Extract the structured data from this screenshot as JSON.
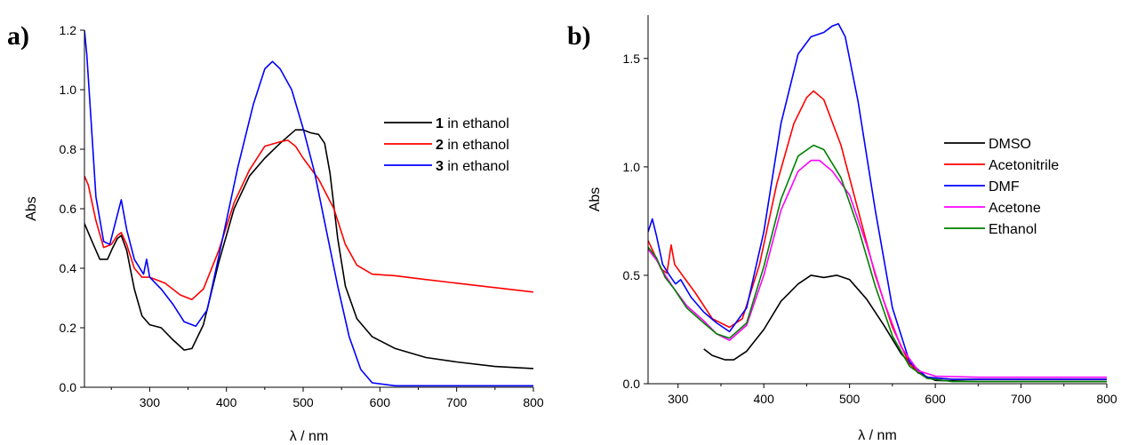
{
  "chart_data": [
    {
      "panel_label": "a)",
      "type": "line",
      "xlabel": "λ / nm",
      "ylabel": "Abs",
      "xlim": [
        215,
        800
      ],
      "ylim": [
        0,
        1.2
      ],
      "xticks": [
        300,
        400,
        500,
        600,
        700,
        800
      ],
      "yticks": [
        "0.0",
        "0.2",
        "0.4",
        "0.6",
        "0.8",
        "1.0",
        "1.2"
      ],
      "legend_position": "top-right",
      "series": [
        {
          "legend_bold": "1",
          "legend_rest": " in ethanol",
          "color": "#000000",
          "points": [
            [
              215,
              0.55
            ],
            [
              225,
              0.49
            ],
            [
              235,
              0.43
            ],
            [
              245,
              0.43
            ],
            [
              252,
              0.47
            ],
            [
              258,
              0.5
            ],
            [
              263,
              0.51
            ],
            [
              270,
              0.46
            ],
            [
              280,
              0.33
            ],
            [
              290,
              0.24
            ],
            [
              300,
              0.21
            ],
            [
              315,
              0.2
            ],
            [
              330,
              0.16
            ],
            [
              345,
              0.125
            ],
            [
              355,
              0.13
            ],
            [
              370,
              0.21
            ],
            [
              390,
              0.42
            ],
            [
              410,
              0.6
            ],
            [
              430,
              0.71
            ],
            [
              450,
              0.77
            ],
            [
              470,
              0.82
            ],
            [
              490,
              0.865
            ],
            [
              500,
              0.865
            ],
            [
              510,
              0.855
            ],
            [
              520,
              0.85
            ],
            [
              528,
              0.82
            ],
            [
              535,
              0.72
            ],
            [
              545,
              0.5
            ],
            [
              555,
              0.34
            ],
            [
              570,
              0.23
            ],
            [
              590,
              0.17
            ],
            [
              620,
              0.13
            ],
            [
              660,
              0.1
            ],
            [
              700,
              0.085
            ],
            [
              750,
              0.07
            ],
            [
              800,
              0.063
            ]
          ]
        },
        {
          "legend_bold": "2",
          "legend_rest": " in ethanol",
          "color": "#ff0000",
          "points": [
            [
              215,
              0.71
            ],
            [
              220,
              0.68
            ],
            [
              230,
              0.56
            ],
            [
              240,
              0.47
            ],
            [
              250,
              0.48
            ],
            [
              258,
              0.51
            ],
            [
              263,
              0.52
            ],
            [
              270,
              0.48
            ],
            [
              280,
              0.4
            ],
            [
              290,
              0.37
            ],
            [
              300,
              0.37
            ],
            [
              320,
              0.35
            ],
            [
              340,
              0.31
            ],
            [
              355,
              0.295
            ],
            [
              370,
              0.33
            ],
            [
              390,
              0.46
            ],
            [
              410,
              0.62
            ],
            [
              430,
              0.73
            ],
            [
              450,
              0.81
            ],
            [
              470,
              0.825
            ],
            [
              480,
              0.83
            ],
            [
              490,
              0.81
            ],
            [
              500,
              0.77
            ],
            [
              520,
              0.7
            ],
            [
              540,
              0.6
            ],
            [
              555,
              0.48
            ],
            [
              570,
              0.41
            ],
            [
              590,
              0.38
            ],
            [
              620,
              0.375
            ],
            [
              650,
              0.365
            ],
            [
              700,
              0.35
            ],
            [
              750,
              0.335
            ],
            [
              800,
              0.32
            ]
          ]
        },
        {
          "legend_bold": "3",
          "legend_rest": " in ethanol",
          "color": "#0000ff",
          "points": [
            [
              215,
              1.2
            ],
            [
              218,
              1.12
            ],
            [
              224,
              0.88
            ],
            [
              230,
              0.64
            ],
            [
              240,
              0.49
            ],
            [
              248,
              0.48
            ],
            [
              255,
              0.55
            ],
            [
              263,
              0.63
            ],
            [
              270,
              0.53
            ],
            [
              280,
              0.43
            ],
            [
              292,
              0.38
            ],
            [
              296,
              0.43
            ],
            [
              300,
              0.37
            ],
            [
              315,
              0.33
            ],
            [
              330,
              0.28
            ],
            [
              345,
              0.22
            ],
            [
              360,
              0.205
            ],
            [
              375,
              0.26
            ],
            [
              395,
              0.5
            ],
            [
              415,
              0.74
            ],
            [
              435,
              0.95
            ],
            [
              450,
              1.07
            ],
            [
              460,
              1.095
            ],
            [
              470,
              1.07
            ],
            [
              485,
              1.0
            ],
            [
              500,
              0.87
            ],
            [
              515,
              0.72
            ],
            [
              530,
              0.53
            ],
            [
              545,
              0.34
            ],
            [
              560,
              0.17
            ],
            [
              575,
              0.06
            ],
            [
              590,
              0.015
            ],
            [
              620,
              0.005
            ],
            [
              700,
              0.005
            ],
            [
              800,
              0.005
            ]
          ]
        }
      ]
    },
    {
      "panel_label": "b)",
      "type": "line",
      "xlabel": "λ / nm",
      "ylabel": "Abs",
      "xlim": [
        265,
        800
      ],
      "ylim": [
        0,
        1.7
      ],
      "xticks": [
        300,
        400,
        500,
        600,
        700,
        800
      ],
      "yticks": [
        "0.0",
        "0.5",
        "1.0",
        "1.5"
      ],
      "legend_position": "right",
      "series": [
        {
          "name": "DMSO",
          "color": "#000000",
          "points": [
            [
              330,
              0.16
            ],
            [
              340,
              0.13
            ],
            [
              355,
              0.11
            ],
            [
              365,
              0.11
            ],
            [
              380,
              0.15
            ],
            [
              400,
              0.25
            ],
            [
              420,
              0.38
            ],
            [
              440,
              0.46
            ],
            [
              455,
              0.5
            ],
            [
              470,
              0.49
            ],
            [
              485,
              0.5
            ],
            [
              500,
              0.48
            ],
            [
              520,
              0.39
            ],
            [
              540,
              0.27
            ],
            [
              560,
              0.14
            ],
            [
              580,
              0.05
            ],
            [
              600,
              0.015
            ],
            [
              650,
              0.01
            ],
            [
              800,
              0.01
            ]
          ]
        },
        {
          "name": "Acetonitrile",
          "color": "#ff0000",
          "points": [
            [
              265,
              0.66
            ],
            [
              272,
              0.6
            ],
            [
              280,
              0.53
            ],
            [
              287,
              0.51
            ],
            [
              292,
              0.64
            ],
            [
              296,
              0.55
            ],
            [
              305,
              0.5
            ],
            [
              320,
              0.42
            ],
            [
              340,
              0.3
            ],
            [
              360,
              0.26
            ],
            [
              375,
              0.3
            ],
            [
              395,
              0.55
            ],
            [
              415,
              0.92
            ],
            [
              435,
              1.2
            ],
            [
              450,
              1.32
            ],
            [
              458,
              1.35
            ],
            [
              470,
              1.31
            ],
            [
              490,
              1.1
            ],
            [
              510,
              0.8
            ],
            [
              530,
              0.5
            ],
            [
              550,
              0.26
            ],
            [
              570,
              0.09
            ],
            [
              590,
              0.03
            ],
            [
              620,
              0.02
            ],
            [
              800,
              0.02
            ]
          ]
        },
        {
          "name": "DMF",
          "color": "#0000ff",
          "points": [
            [
              265,
              0.7
            ],
            [
              270,
              0.76
            ],
            [
              275,
              0.68
            ],
            [
              282,
              0.55
            ],
            [
              290,
              0.5
            ],
            [
              297,
              0.46
            ],
            [
              303,
              0.48
            ],
            [
              315,
              0.4
            ],
            [
              330,
              0.33
            ],
            [
              345,
              0.28
            ],
            [
              360,
              0.24
            ],
            [
              380,
              0.35
            ],
            [
              400,
              0.7
            ],
            [
              420,
              1.2
            ],
            [
              440,
              1.52
            ],
            [
              455,
              1.6
            ],
            [
              470,
              1.62
            ],
            [
              480,
              1.65
            ],
            [
              487,
              1.66
            ],
            [
              495,
              1.6
            ],
            [
              510,
              1.3
            ],
            [
              530,
              0.8
            ],
            [
              550,
              0.35
            ],
            [
              570,
              0.1
            ],
            [
              590,
              0.03
            ],
            [
              620,
              0.02
            ],
            [
              800,
              0.02
            ]
          ]
        },
        {
          "name": "Acetone",
          "color": "#ff00ff",
          "points": [
            [
              265,
              0.62
            ],
            [
              275,
              0.57
            ],
            [
              285,
              0.5
            ],
            [
              295,
              0.44
            ],
            [
              310,
              0.36
            ],
            [
              330,
              0.29
            ],
            [
              345,
              0.23
            ],
            [
              360,
              0.2
            ],
            [
              380,
              0.27
            ],
            [
              400,
              0.5
            ],
            [
              420,
              0.8
            ],
            [
              440,
              0.98
            ],
            [
              455,
              1.03
            ],
            [
              465,
              1.03
            ],
            [
              480,
              0.98
            ],
            [
              500,
              0.87
            ],
            [
              520,
              0.64
            ],
            [
              540,
              0.38
            ],
            [
              560,
              0.17
            ],
            [
              580,
              0.06
            ],
            [
              600,
              0.035
            ],
            [
              650,
              0.03
            ],
            [
              800,
              0.03
            ]
          ]
        },
        {
          "name": "Ethanol",
          "color": "#008000",
          "points": [
            [
              265,
              0.63
            ],
            [
              275,
              0.58
            ],
            [
              285,
              0.49
            ],
            [
              295,
              0.44
            ],
            [
              310,
              0.35
            ],
            [
              330,
              0.28
            ],
            [
              345,
              0.23
            ],
            [
              360,
              0.21
            ],
            [
              380,
              0.28
            ],
            [
              400,
              0.54
            ],
            [
              420,
              0.85
            ],
            [
              440,
              1.05
            ],
            [
              458,
              1.1
            ],
            [
              470,
              1.08
            ],
            [
              490,
              0.95
            ],
            [
              510,
              0.72
            ],
            [
              530,
              0.45
            ],
            [
              550,
              0.22
            ],
            [
              570,
              0.08
            ],
            [
              590,
              0.025
            ],
            [
              620,
              0.01
            ],
            [
              800,
              0.01
            ]
          ]
        }
      ]
    }
  ]
}
